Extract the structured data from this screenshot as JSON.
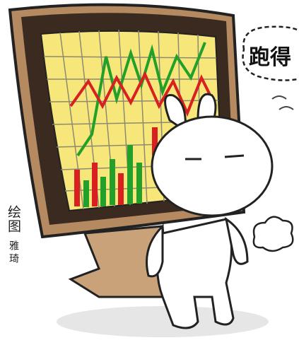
{
  "speech_bubble": {
    "text": "跑得"
  },
  "credit": {
    "label": "绘图",
    "artist": "雅琦"
  }
}
